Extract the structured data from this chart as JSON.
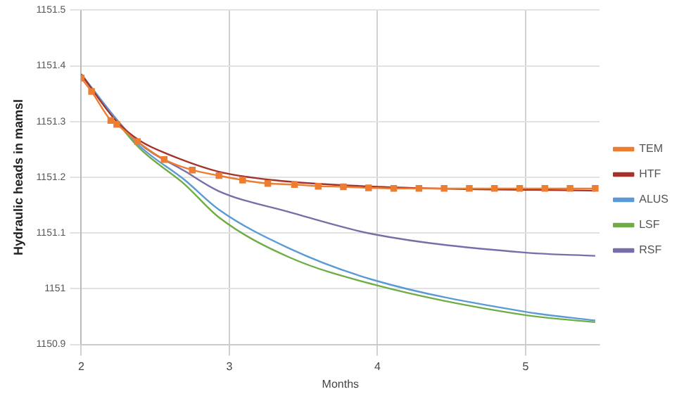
{
  "chart_data": {
    "type": "line",
    "xlabel": "Months",
    "ylabel": "Hydraulic heads in mamsl",
    "xlim": [
      2,
      5.5
    ],
    "xticks": [
      2,
      3,
      4,
      5
    ],
    "ylim": [
      1150.9,
      1151.5
    ],
    "yticks": [
      1150.9,
      1151,
      1151.1,
      1151.2,
      1151.3,
      1151.4,
      1151.5
    ],
    "grid": true,
    "legend": "right",
    "marker": "none",
    "line_style": "solid",
    "series": [
      {
        "name": "TEM",
        "color": "#ed7d31",
        "marker": "square",
        "x": [
          2.0,
          2.07,
          2.2,
          2.24,
          2.38,
          2.56,
          2.75,
          2.93,
          3.09,
          3.26,
          3.44,
          3.6,
          3.77,
          3.94,
          4.11,
          4.28,
          4.45,
          4.62,
          4.79,
          4.96,
          5.13,
          5.3,
          5.47
        ],
        "values": [
          1151.378,
          1151.354,
          1151.302,
          1151.295,
          1151.264,
          1151.232,
          1151.213,
          1151.203,
          1151.195,
          1151.189,
          1151.187,
          1151.184,
          1151.183,
          1151.181,
          1151.18,
          1151.18,
          1151.18,
          1151.18,
          1151.18,
          1151.18,
          1151.18,
          1151.18,
          1151.18
        ]
      },
      {
        "name": "HTF",
        "color": "#a5322b",
        "x": [
          2.0,
          2.24,
          2.4,
          2.6,
          2.93,
          3.3,
          4.0,
          5.47
        ],
        "values": [
          1151.385,
          1151.3,
          1151.265,
          1151.24,
          1151.21,
          1151.195,
          1151.183,
          1151.176
        ]
      },
      {
        "name": "ALUS",
        "color": "#5b9bd5",
        "x": [
          2.0,
          2.38,
          2.7,
          2.93,
          3.4,
          3.97,
          4.99,
          5.47
        ],
        "values": [
          1151.385,
          1151.26,
          1151.195,
          1151.142,
          1151.073,
          1151.016,
          1150.959,
          1150.943
        ]
      },
      {
        "name": "LSF",
        "color": "#70ad47",
        "x": [
          2.0,
          2.38,
          2.7,
          2.93,
          3.4,
          3.97,
          4.99,
          5.47
        ],
        "values": [
          1151.385,
          1151.256,
          1151.187,
          1151.128,
          1151.057,
          1151.008,
          1150.953,
          1150.94
        ]
      },
      {
        "name": "RSF",
        "color": "#7a6ea8",
        "x": [
          2.0,
          2.38,
          2.7,
          2.93,
          3.4,
          3.97,
          4.99,
          5.47
        ],
        "values": [
          1151.383,
          1151.264,
          1151.211,
          1151.175,
          1151.138,
          1151.098,
          1151.065,
          1151.059
        ]
      }
    ]
  }
}
